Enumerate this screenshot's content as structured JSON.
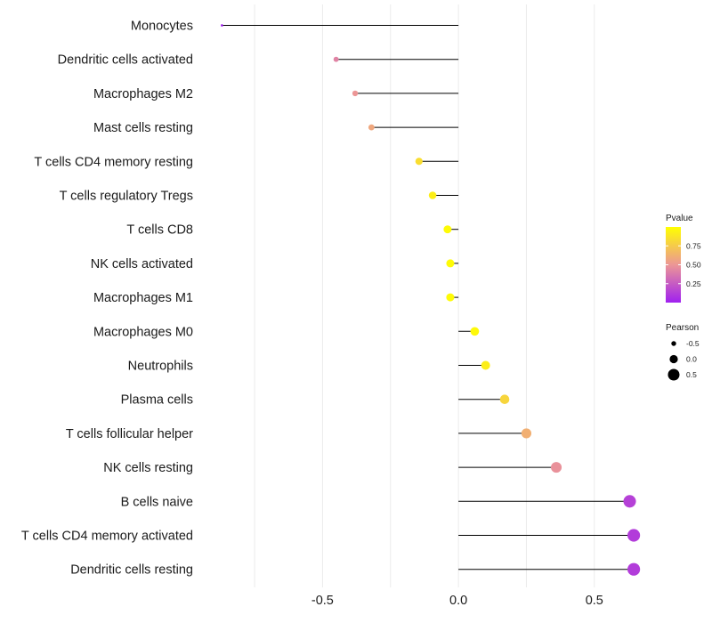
{
  "chart_data": {
    "type": "lollipop",
    "title": "",
    "xlabel": "",
    "ylabel": "",
    "xlim": [
      -0.94,
      0.72
    ],
    "xticks": [
      -0.5,
      0.0,
      0.5
    ],
    "xtick_labels": [
      "-0.5",
      "0.0",
      "0.5"
    ],
    "categories": [
      "Monocytes",
      "Dendritic cells activated",
      "Macrophages M2",
      "Mast cells resting",
      "T cells CD4 memory resting",
      "T cells regulatory  Tregs ",
      "T cells CD8",
      "NK cells activated",
      "Macrophages M1",
      "Macrophages M0",
      "Neutrophils",
      "Plasma cells",
      "T cells follicular helper",
      "NK cells resting",
      "B cells naive",
      "T cells CD4 memory activated",
      "Dendritic cells resting"
    ],
    "pearson": [
      -0.87,
      -0.45,
      -0.38,
      -0.32,
      -0.145,
      -0.095,
      -0.04,
      -0.03,
      -0.03,
      0.06,
      0.1,
      0.17,
      0.25,
      0.36,
      0.63,
      0.645,
      0.645
    ],
    "pvalue": [
      0.0,
      0.42,
      0.5,
      0.58,
      0.84,
      0.92,
      0.98,
      0.98,
      0.98,
      0.97,
      0.92,
      0.8,
      0.62,
      0.48,
      0.14,
      0.12,
      0.12
    ],
    "legend_color": {
      "title": "Pvalue",
      "range": [
        0.0,
        1.0
      ],
      "ticks": [
        0.25,
        0.5,
        0.75
      ],
      "tick_labels": [
        "0.25",
        "0.50",
        "0.75"
      ],
      "low_color": "#a020f0",
      "high_color": "#ffff00"
    },
    "legend_size": {
      "title": "Pearson",
      "values": [
        -0.5,
        0.0,
        0.5
      ],
      "labels": [
        "-0.5",
        "0.0",
        "0.5"
      ]
    },
    "segment_color": "#000000",
    "grid": true
  }
}
